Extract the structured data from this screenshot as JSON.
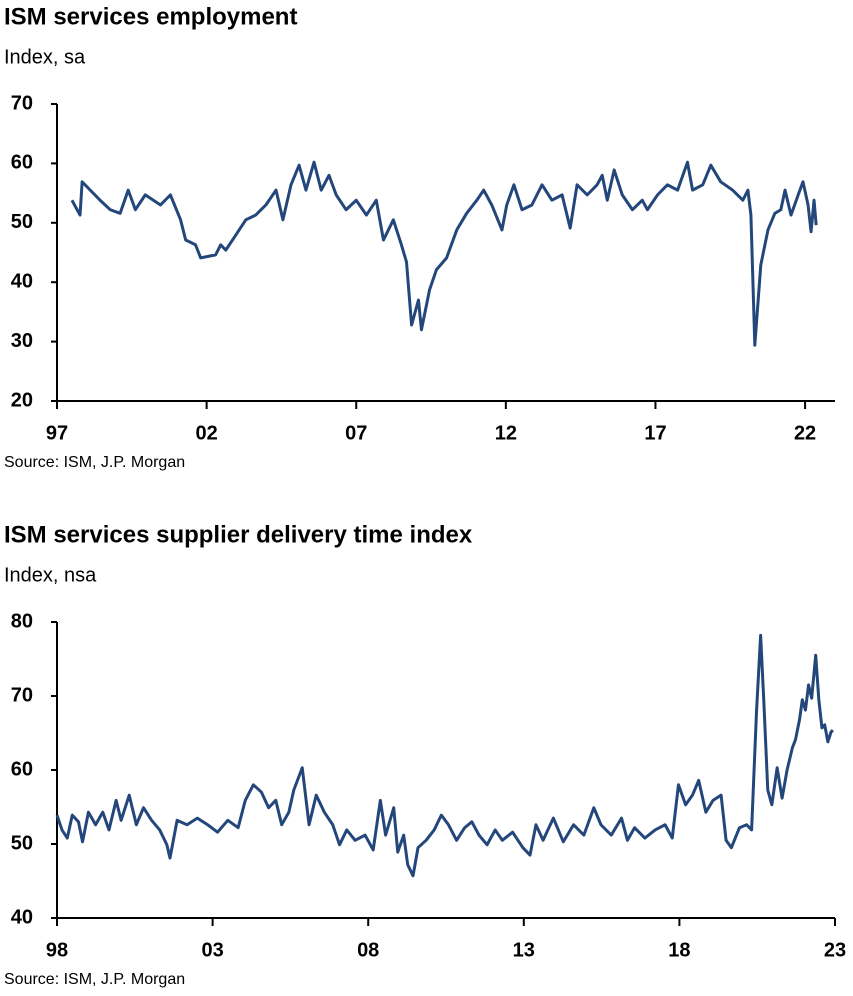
{
  "chart_data": [
    {
      "type": "line",
      "title": "ISM services employment",
      "subtitle": "Index, sa",
      "source": "Source: ISM, J.P. Morgan",
      "color": "#24477b",
      "xlim": [
        1997,
        2023
      ],
      "xticks": [
        {
          "value": 1997,
          "label": "97"
        },
        {
          "value": 2002,
          "label": "02"
        },
        {
          "value": 2007,
          "label": "07"
        },
        {
          "value": 2012,
          "label": "12"
        },
        {
          "value": 2017,
          "label": "17"
        },
        {
          "value": 2022,
          "label": "22"
        }
      ],
      "ylim": [
        20,
        70
      ],
      "yticks": [
        20,
        30,
        40,
        50,
        60,
        70
      ],
      "x": [
        1997.5,
        1997.77,
        1997.84,
        1998.11,
        1998.44,
        1998.78,
        1999.11,
        1999.38,
        1999.62,
        1999.95,
        2000.46,
        2000.79,
        2001.13,
        2001.3,
        2001.63,
        2001.8,
        2002.3,
        2002.47,
        2002.64,
        2002.97,
        2003.31,
        2003.64,
        2003.98,
        2004.32,
        2004.55,
        2004.82,
        2005.09,
        2005.32,
        2005.59,
        2005.83,
        2006.09,
        2006.33,
        2006.66,
        2007.0,
        2007.34,
        2007.67,
        2007.91,
        2008.24,
        2008.51,
        2008.68,
        2008.85,
        2009.08,
        2009.18,
        2009.45,
        2009.68,
        2010.02,
        2010.36,
        2010.69,
        2011.03,
        2011.26,
        2011.53,
        2011.87,
        2012.03,
        2012.27,
        2012.54,
        2012.87,
        2013.21,
        2013.54,
        2013.88,
        2014.15,
        2014.38,
        2014.72,
        2015.05,
        2015.22,
        2015.39,
        2015.62,
        2015.89,
        2016.23,
        2016.56,
        2016.73,
        2017.07,
        2017.4,
        2017.74,
        2018.07,
        2018.24,
        2018.58,
        2018.85,
        2019.18,
        2019.58,
        2019.92,
        2020.09,
        2020.19,
        2020.32,
        2020.52,
        2020.76,
        2020.99,
        2021.19,
        2021.33,
        2021.53,
        2021.77,
        2021.93,
        2022.1,
        2022.2,
        2022.3,
        2022.37
      ],
      "values": [
        53.8,
        51.3,
        56.9,
        55.5,
        53.8,
        52.2,
        51.6,
        55.5,
        52.2,
        54.7,
        53.0,
        54.7,
        50.5,
        47.1,
        46.3,
        44.1,
        44.6,
        46.3,
        45.4,
        47.9,
        50.5,
        51.3,
        53.0,
        55.5,
        50.5,
        56.4,
        59.7,
        55.5,
        60.2,
        55.5,
        58.0,
        54.7,
        52.2,
        53.8,
        51.3,
        53.8,
        47.1,
        50.5,
        46.3,
        43.4,
        32.8,
        37.0,
        32.0,
        38.7,
        42.1,
        44.1,
        48.8,
        51.6,
        53.8,
        55.5,
        53.0,
        48.8,
        53.0,
        56.4,
        52.2,
        53.0,
        56.4,
        53.8,
        54.7,
        49.1,
        56.4,
        54.7,
        56.4,
        58.0,
        53.8,
        58.9,
        54.7,
        52.2,
        53.8,
        52.2,
        54.7,
        56.4,
        55.5,
        60.2,
        55.5,
        56.4,
        59.7,
        56.9,
        55.5,
        53.8,
        55.5,
        51.3,
        29.4,
        42.9,
        48.8,
        51.6,
        52.2,
        55.5,
        51.3,
        54.7,
        56.9,
        53.0,
        48.5,
        53.8,
        49.6
      ]
    },
    {
      "type": "line",
      "title": "ISM services supplier delivery time index",
      "subtitle": "Index, nsa",
      "source": "Source: ISM, J.P. Morgan",
      "color": "#24477b",
      "xlim": [
        1998,
        2023
      ],
      "xticks": [
        {
          "value": 1998,
          "label": "98"
        },
        {
          "value": 2003,
          "label": "03"
        },
        {
          "value": 2008,
          "label": "08"
        },
        {
          "value": 2013,
          "label": "13"
        },
        {
          "value": 2018,
          "label": "18"
        },
        {
          "value": 2023,
          "label": "23"
        }
      ],
      "ylim": [
        40,
        80
      ],
      "yticks": [
        40,
        50,
        60,
        70,
        80
      ],
      "x": [
        1998.0,
        1998.16,
        1998.33,
        1998.49,
        1998.69,
        1998.82,
        1999.01,
        1999.24,
        1999.47,
        1999.67,
        1999.9,
        2000.06,
        2000.32,
        2000.55,
        2000.78,
        2001.04,
        2001.3,
        2001.53,
        2001.63,
        2001.86,
        2002.18,
        2002.51,
        2002.84,
        2003.16,
        2003.49,
        2003.82,
        2004.05,
        2004.31,
        2004.57,
        2004.8,
        2005.03,
        2005.22,
        2005.45,
        2005.61,
        2005.88,
        2006.1,
        2006.33,
        2006.59,
        2006.86,
        2007.08,
        2007.31,
        2007.58,
        2007.9,
        2008.16,
        2008.39,
        2008.56,
        2008.82,
        2008.95,
        2009.14,
        2009.27,
        2009.44,
        2009.6,
        2009.86,
        2010.12,
        2010.35,
        2010.58,
        2010.84,
        2011.1,
        2011.33,
        2011.56,
        2011.82,
        2012.08,
        2012.31,
        2012.64,
        2012.97,
        2013.2,
        2013.39,
        2013.62,
        2013.95,
        2014.27,
        2014.6,
        2014.93,
        2015.25,
        2015.48,
        2015.81,
        2016.14,
        2016.33,
        2016.56,
        2016.89,
        2017.22,
        2017.54,
        2017.77,
        2017.97,
        2018.2,
        2018.42,
        2018.62,
        2018.85,
        2019.08,
        2019.34,
        2019.5,
        2019.67,
        2019.93,
        2020.16,
        2020.32,
        2020.48,
        2020.61,
        2020.71,
        2020.84,
        2020.97,
        2021.14,
        2021.3,
        2021.46,
        2021.63,
        2021.73,
        2021.86,
        2021.95,
        2022.05,
        2022.15,
        2022.25,
        2022.38,
        2022.48,
        2022.58,
        2022.67,
        2022.77,
        2022.87,
        2022.93
      ],
      "values": [
        53.9,
        51.9,
        50.8,
        53.9,
        53.0,
        50.3,
        54.3,
        52.6,
        54.3,
        51.9,
        55.9,
        53.2,
        56.6,
        52.6,
        54.9,
        53.2,
        51.9,
        49.9,
        48.1,
        53.2,
        52.6,
        53.5,
        52.6,
        51.6,
        53.2,
        52.2,
        55.9,
        58.0,
        57.0,
        54.9,
        55.9,
        52.6,
        54.3,
        57.3,
        60.3,
        52.6,
        56.6,
        54.3,
        52.6,
        49.9,
        51.9,
        50.5,
        51.2,
        49.2,
        55.9,
        51.2,
        54.9,
        48.9,
        51.2,
        47.2,
        45.7,
        49.5,
        50.5,
        51.9,
        53.9,
        52.6,
        50.5,
        52.2,
        53.0,
        51.2,
        49.9,
        51.9,
        50.5,
        51.6,
        49.5,
        48.5,
        52.6,
        50.5,
        53.5,
        50.3,
        52.6,
        51.2,
        54.9,
        52.6,
        51.2,
        53.5,
        50.5,
        52.2,
        50.8,
        51.9,
        52.6,
        50.8,
        58.0,
        55.3,
        56.6,
        58.6,
        54.3,
        55.9,
        56.6,
        50.5,
        49.5,
        52.2,
        52.6,
        51.9,
        68.1,
        78.2,
        69.5,
        57.3,
        55.3,
        60.3,
        56.2,
        60.0,
        63.0,
        64.1,
        66.8,
        69.5,
        68.1,
        71.5,
        69.7,
        75.5,
        69.5,
        65.7,
        66.1,
        63.8,
        65.1,
        65.4
      ]
    }
  ]
}
